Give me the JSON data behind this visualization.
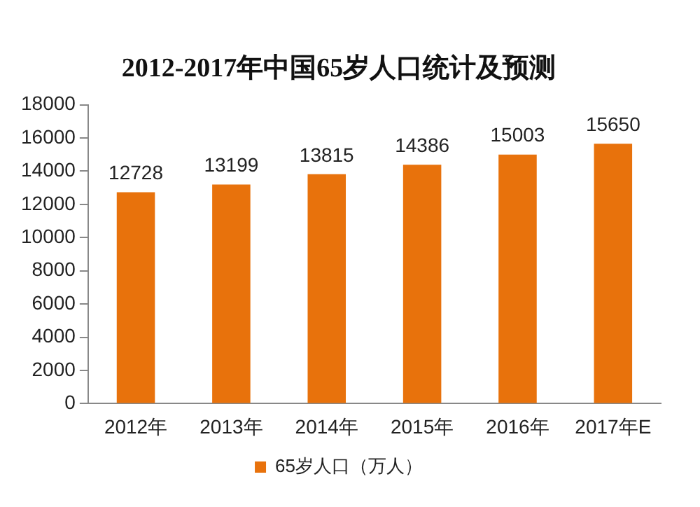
{
  "chart_data": {
    "type": "bar",
    "title": "2012-2017年中国65岁人口统计及预测",
    "categories": [
      "2012年",
      "2013年",
      "2014年",
      "2015年",
      "2016年",
      "2017年E"
    ],
    "series": [
      {
        "name": "65岁人口（万人）",
        "color": "#e8720c",
        "values": [
          12728,
          13199,
          13815,
          14386,
          15003,
          15650
        ]
      }
    ],
    "ylim": [
      0,
      18000
    ],
    "yticks": [
      0,
      2000,
      4000,
      6000,
      8000,
      10000,
      12000,
      14000,
      16000,
      18000
    ],
    "grid": false,
    "legend": "bottom",
    "data_labels": true
  }
}
